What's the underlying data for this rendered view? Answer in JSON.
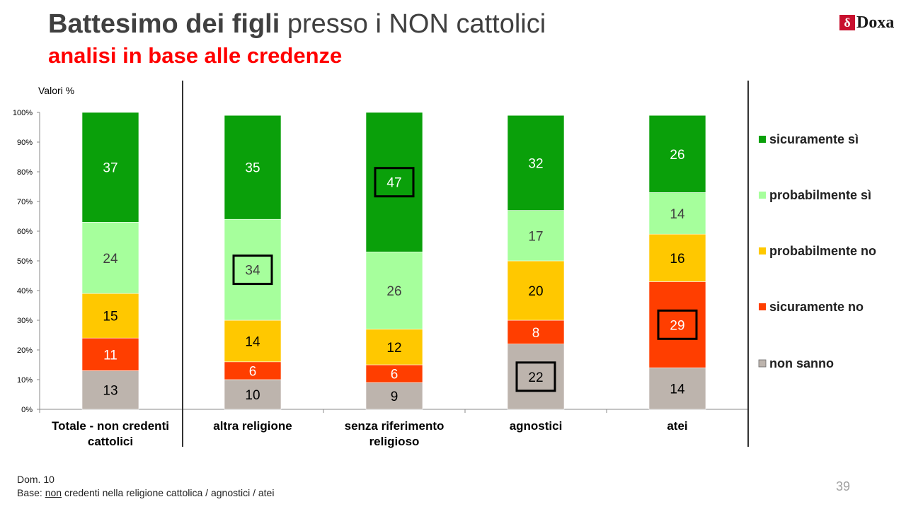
{
  "header": {
    "title_bold": "Battesimo dei figli",
    "title_rest": " presso i NON cattolici",
    "subtitle": "analisi in base alle credenze",
    "logo_text": "Doxa",
    "logo_mark": "δ"
  },
  "footer": {
    "question": "Dom. 10",
    "base_prefix": "Base: ",
    "base_underlined": "non",
    "base_rest": " credenti nella religione cattolica / agnostici / atei",
    "page_number": "39"
  },
  "chart_data": {
    "type": "bar",
    "stacked": true,
    "unit_label": "Valori %",
    "ylim": [
      0,
      100
    ],
    "yticks": [
      "0%",
      "10%",
      "20%",
      "30%",
      "40%",
      "50%",
      "60%",
      "70%",
      "80%",
      "90%",
      "100%"
    ],
    "categories": [
      [
        "Totale - non credenti",
        "cattolici"
      ],
      [
        "altra religione"
      ],
      [
        "senza riferimento",
        "religioso"
      ],
      [
        "agnostici"
      ],
      [
        "atei"
      ]
    ],
    "series": [
      {
        "name": "non sanno",
        "color": "#bdb4ad",
        "label_color": "#000000",
        "values": [
          13,
          10,
          9,
          22,
          14
        ]
      },
      {
        "name": "sicuramente no",
        "color": "#ff3e00",
        "label_color": "#ffffff",
        "values": [
          11,
          6,
          6,
          8,
          29
        ]
      },
      {
        "name": "probabilmente no",
        "color": "#ffc800",
        "label_color": "#000000",
        "values": [
          15,
          14,
          12,
          20,
          16
        ]
      },
      {
        "name": "probabilmente sì",
        "color": "#a6ff9c",
        "label_color": "#404040",
        "values": [
          24,
          34,
          26,
          17,
          14
        ]
      },
      {
        "name": "sicuramente sì",
        "color": "#0aa00a",
        "label_color": "#ffffff",
        "values": [
          37,
          35,
          47,
          32,
          26
        ]
      }
    ],
    "highlighted": [
      {
        "category_index": 1,
        "series": "probabilmente sì"
      },
      {
        "category_index": 2,
        "series": "sicuramente sì"
      },
      {
        "category_index": 3,
        "series": "non sanno"
      },
      {
        "category_index": 4,
        "series": "sicuramente no"
      }
    ],
    "legend": {
      "position": "right",
      "order": [
        "sicuramente sì",
        "probabilmente sì",
        "probabilmente no",
        "sicuramente no",
        "non sanno"
      ]
    }
  }
}
